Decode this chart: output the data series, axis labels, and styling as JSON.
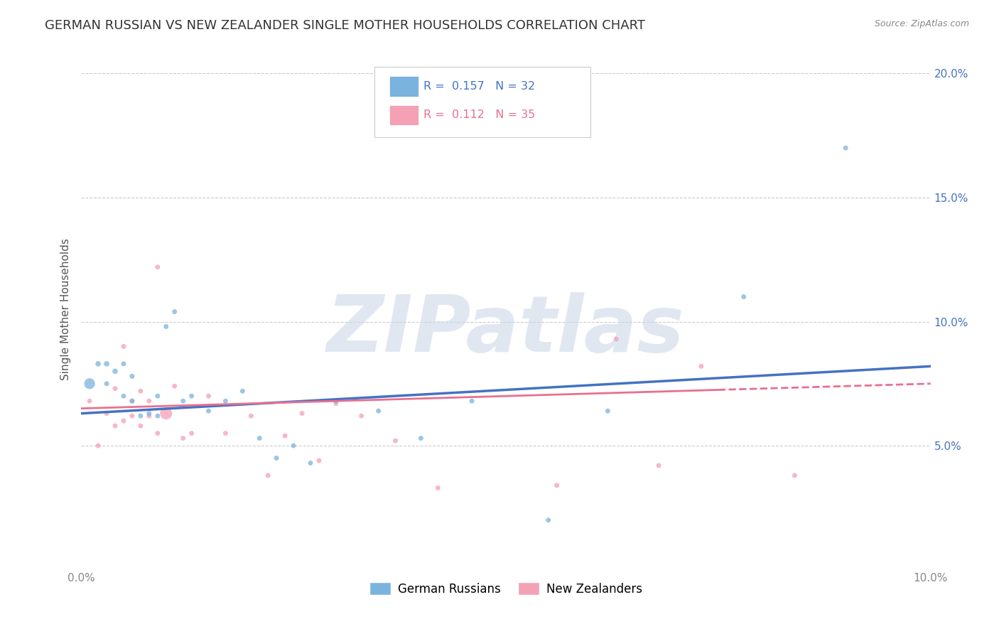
{
  "title": "GERMAN RUSSIAN VS NEW ZEALANDER SINGLE MOTHER HOUSEHOLDS CORRELATION CHART",
  "source": "Source: ZipAtlas.com",
  "ylabel": "Single Mother Households",
  "xlim": [
    0,
    0.1
  ],
  "ylim": [
    0,
    0.21
  ],
  "xticks": [
    0.0,
    0.1
  ],
  "yticks": [
    0.0,
    0.05,
    0.1,
    0.15,
    0.2
  ],
  "legend1_text": "R = 0.157   N = 32",
  "legend2_text": "R = 0.112   N = 35",
  "legend_label1": "German Russians",
  "legend_label2": "New Zealanders",
  "blue_color": "#7ab3de",
  "pink_color": "#f4a0b5",
  "blue_line_color": "#4472c4",
  "pink_line_color": "#e87090",
  "watermark_color": "#cdd8e8",
  "watermark_text": "ZIPatlas",
  "blue_R": 0.157,
  "pink_R": 0.112,
  "blue_N": 32,
  "pink_N": 35,
  "blue_line_y0": 0.063,
  "blue_line_y1": 0.082,
  "pink_line_y0": 0.065,
  "pink_line_y1": 0.075,
  "blue_x": [
    0.001,
    0.002,
    0.003,
    0.003,
    0.004,
    0.005,
    0.005,
    0.006,
    0.006,
    0.007,
    0.008,
    0.009,
    0.009,
    0.01,
    0.011,
    0.012,
    0.013,
    0.015,
    0.017,
    0.019,
    0.021,
    0.023,
    0.025,
    0.027,
    0.03,
    0.035,
    0.04,
    0.046,
    0.055,
    0.062,
    0.078,
    0.09
  ],
  "blue_y": [
    0.075,
    0.083,
    0.083,
    0.075,
    0.08,
    0.083,
    0.07,
    0.078,
    0.068,
    0.062,
    0.063,
    0.062,
    0.07,
    0.098,
    0.104,
    0.068,
    0.07,
    0.064,
    0.068,
    0.072,
    0.053,
    0.045,
    0.05,
    0.043,
    0.068,
    0.064,
    0.053,
    0.068,
    0.02,
    0.064,
    0.11,
    0.17
  ],
  "blue_size": [
    120,
    30,
    30,
    25,
    30,
    25,
    25,
    25,
    25,
    25,
    25,
    25,
    25,
    25,
    25,
    25,
    25,
    25,
    25,
    25,
    25,
    25,
    25,
    25,
    25,
    25,
    25,
    25,
    25,
    25,
    25,
    25
  ],
  "pink_x": [
    0.001,
    0.002,
    0.003,
    0.004,
    0.004,
    0.005,
    0.005,
    0.006,
    0.006,
    0.007,
    0.007,
    0.008,
    0.008,
    0.009,
    0.009,
    0.01,
    0.011,
    0.012,
    0.013,
    0.015,
    0.017,
    0.02,
    0.022,
    0.024,
    0.026,
    0.028,
    0.03,
    0.033,
    0.037,
    0.042,
    0.056,
    0.063,
    0.068,
    0.073,
    0.084
  ],
  "pink_y": [
    0.068,
    0.05,
    0.063,
    0.058,
    0.073,
    0.06,
    0.09,
    0.062,
    0.068,
    0.072,
    0.058,
    0.068,
    0.062,
    0.055,
    0.122,
    0.063,
    0.074,
    0.053,
    0.055,
    0.07,
    0.055,
    0.062,
    0.038,
    0.054,
    0.063,
    0.044,
    0.067,
    0.062,
    0.052,
    0.033,
    0.034,
    0.093,
    0.042,
    0.082,
    0.038
  ],
  "pink_size": [
    25,
    25,
    25,
    25,
    25,
    25,
    25,
    25,
    25,
    25,
    25,
    25,
    25,
    25,
    25,
    150,
    25,
    25,
    25,
    25,
    25,
    25,
    25,
    25,
    25,
    25,
    25,
    25,
    25,
    25,
    25,
    25,
    25,
    25,
    25
  ]
}
